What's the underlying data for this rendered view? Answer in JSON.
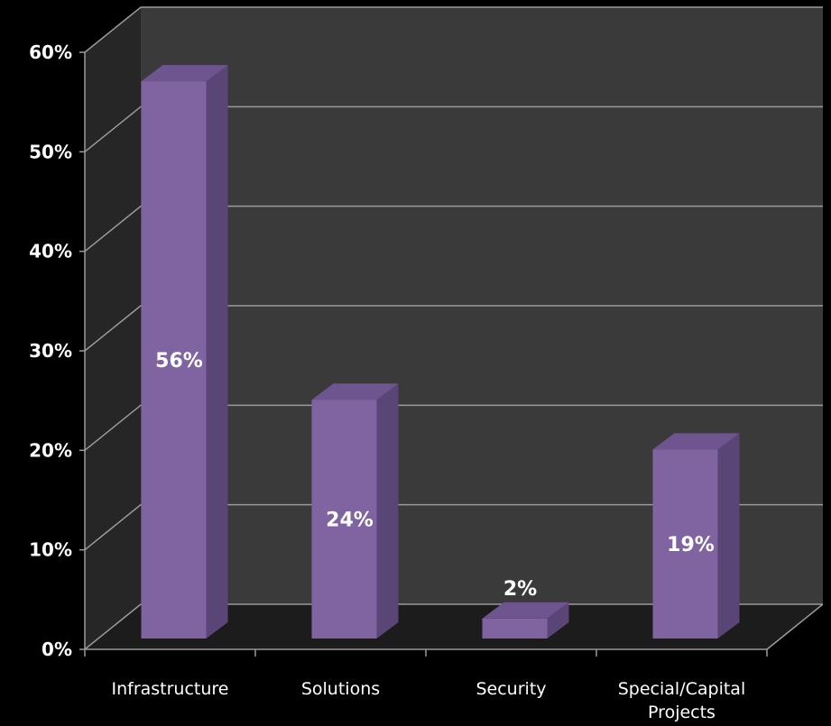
{
  "chart_data": {
    "type": "bar",
    "title": "",
    "xlabel": "",
    "ylabel": "",
    "categories": [
      [
        "Infrastructure"
      ],
      [
        "Solutions"
      ],
      [
        "Security"
      ],
      [
        "Special/Capital",
        "Projects"
      ]
    ],
    "values": [
      56,
      24,
      2,
      19
    ],
    "data_labels": [
      "56%",
      "24%",
      "2%",
      "19%"
    ],
    "ylim": [
      0,
      60
    ],
    "yticks": [
      0,
      10,
      20,
      30,
      40,
      50,
      60
    ],
    "ytick_labels": [
      "0%",
      "10%",
      "20%",
      "30%",
      "40%",
      "50%",
      "60%"
    ],
    "grid": true,
    "style": "3d",
    "colors": {
      "background": "#000000",
      "back_wall": "#3a3a3a",
      "side_wall": "#262626",
      "floor": "#1c1c1c",
      "gridline": "#9a9a9a",
      "bar_front": "#8064a2",
      "bar_top": "#6e5590",
      "bar_side": "#5a4577",
      "text": "#ffffff"
    }
  }
}
